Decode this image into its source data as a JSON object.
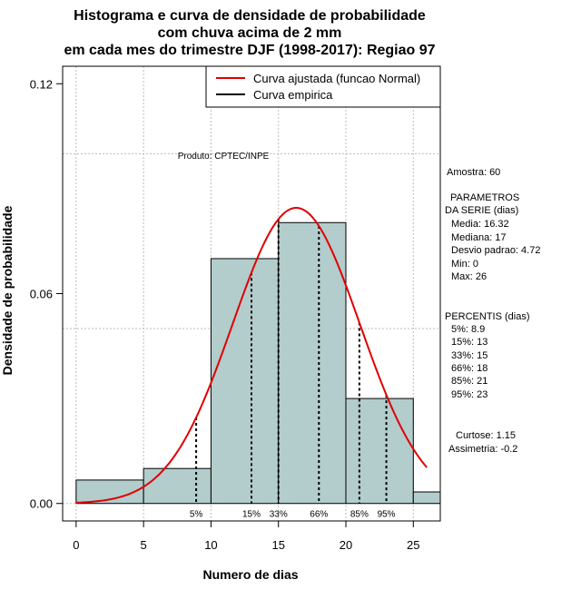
{
  "chart_data": {
    "type": "bar",
    "title": [
      "Histograma e curva de densidade de probabilidade",
      "com chuva acima de 2 mm",
      "em cada mes do trimestre DJF (1998-2017): Regiao 97"
    ],
    "xlabel": "Numero de dias",
    "ylabel": "Densidade de probabilidade",
    "xlim": [
      -1,
      27
    ],
    "ylim": [
      -0.005,
      0.125
    ],
    "x_ticks": [
      0,
      5,
      10,
      15,
      20,
      25
    ],
    "x_tick_labels": [
      "0",
      "5",
      "10",
      "15",
      "20",
      "25"
    ],
    "y_ticks": [
      0.0,
      0.06,
      0.12
    ],
    "y_tick_labels": [
      "0.00",
      "0.06",
      "0.12"
    ],
    "grid_y": [
      0.0,
      0.05,
      0.1
    ],
    "histogram": {
      "bin_edges": [
        0,
        5,
        10,
        15,
        20,
        25,
        27
      ],
      "densities": [
        0.0067,
        0.01,
        0.07,
        0.0803,
        0.03,
        0.0033
      ],
      "fill": "#b3cccc"
    },
    "normal_fit": {
      "mean": 16.32,
      "sd": 4.72,
      "x_range": [
        0,
        26
      ],
      "color": "#e00000"
    },
    "percentile_markers": [
      {
        "label": "5%",
        "x": 8.9
      },
      {
        "label": "15%",
        "x": 13
      },
      {
        "label": "33%",
        "x": 15
      },
      {
        "label": "66%",
        "x": 18
      },
      {
        "label": "85%",
        "x": 21
      },
      {
        "label": "95%",
        "x": 23
      }
    ],
    "legend": {
      "position": "top-right",
      "entries": [
        {
          "label": "Curva ajustada (funcao Normal)",
          "color": "#e00000"
        },
        {
          "label": "Curva empirica",
          "color": "#000000"
        }
      ]
    },
    "annotation": "Produto: CPTEC/INPE"
  },
  "side_panel": {
    "sample": "Amostra: 60",
    "params_title_1": "PARAMETROS",
    "params_title_2": "DA SERIE (dias)",
    "media": "Media: 16.32",
    "mediana": "Mediana: 17",
    "desvio": "Desvio padrao: 4.72",
    "min": "Min: 0",
    "max": "Max: 26",
    "pct_title": "PERCENTIS (dias)",
    "p5": "5%: 8.9",
    "p15": "15%: 13",
    "p33": "33%: 15",
    "p66": "66%: 18",
    "p85": "85%: 21",
    "p95": "95%: 23",
    "curtose": "Curtose: 1.15",
    "assimetria": "Assimetria: -0.2"
  }
}
